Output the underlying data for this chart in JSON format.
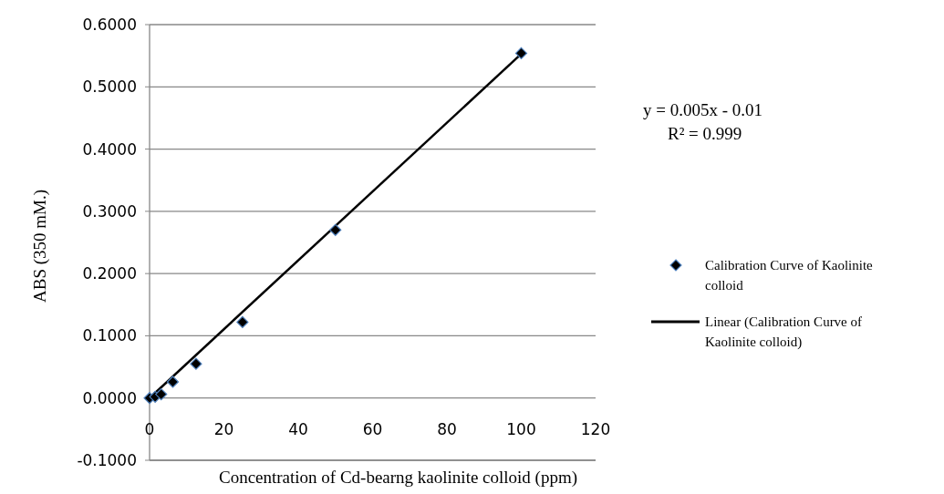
{
  "chart_data": {
    "type": "scatter",
    "xlabel": "Concentration of Cd-bearng kaolinite colloid (ppm)",
    "ylabel": "ABS (350 mM.)",
    "xlim": [
      0,
      120
    ],
    "xticks": [
      0,
      20,
      40,
      60,
      80,
      100,
      120
    ],
    "ylim": [
      -0.1,
      0.6
    ],
    "yticks": [
      {
        "value": -0.1,
        "label": "-0.1000"
      },
      {
        "value": 0,
        "label": "0.0000"
      },
      {
        "value": 0.1,
        "label": "0.1000"
      },
      {
        "value": 0.2,
        "label": "0.2000"
      },
      {
        "value": 0.3,
        "label": "0.3000"
      },
      {
        "value": 0.4,
        "label": "0.4000"
      },
      {
        "value": 0.5,
        "label": "0.5000"
      },
      {
        "value": 0.6,
        "label": "0.6000"
      }
    ],
    "grid": "y",
    "legend": "right",
    "marker": "diamond",
    "annotations": [
      "y = 0.005x - 0.01",
      "R² = 0.999"
    ],
    "series": [
      {
        "name": "Calibration Curve of Kaolinite colloid",
        "color": "#000000",
        "x": [
          0,
          1.5,
          3.125,
          6.25,
          12.5,
          25,
          50,
          100
        ],
        "values": [
          0,
          0.002,
          0.006,
          0.026,
          0.055,
          0.122,
          0.27,
          0.554
        ]
      },
      {
        "name": "Linear (Calibration Curve of Kaolinite colloid)",
        "type": "line",
        "color": "#000000",
        "marker": "none",
        "line_style": "solid",
        "x": [
          0,
          100
        ],
        "values": [
          0,
          0.553
        ]
      }
    ]
  }
}
